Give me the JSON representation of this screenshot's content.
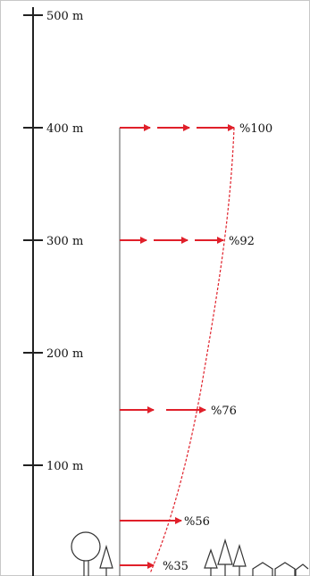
{
  "scale": {
    "ticks": [
      {
        "label": "500 m"
      },
      {
        "label": "400 m"
      },
      {
        "label": "300 m"
      },
      {
        "label": "200 m"
      },
      {
        "label": "100 m"
      }
    ]
  },
  "profile": {
    "levels": [
      {
        "height_m": 400,
        "percent_label": "%100"
      },
      {
        "height_m": 300,
        "percent_label": "%92"
      },
      {
        "height_m": 150,
        "percent_label": "%76"
      },
      {
        "height_m": 50,
        "percent_label": "%56"
      },
      {
        "height_m": 10,
        "percent_label": "%35"
      }
    ]
  },
  "colors": {
    "arrow": "#e0202a",
    "curve": "#e0202a",
    "axis": "#222222",
    "ground_objects": "#333333"
  },
  "icons": [
    "round-tree-icon",
    "conifer-tree-icon",
    "house-icon"
  ]
}
